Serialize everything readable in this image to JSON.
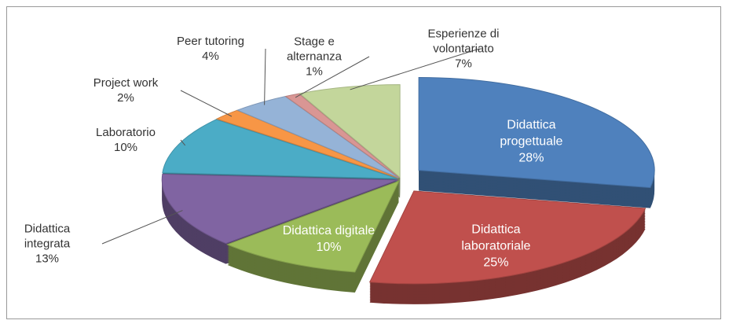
{
  "chart_data": {
    "type": "pie",
    "categories": [
      "Didattica progettuale",
      "Didattica laboratoriale",
      "Didattica digitale",
      "Didattica integrata",
      "Laboratorio",
      "Project work",
      "Peer tutoring",
      "Stage e alternanza",
      "Esperienze di volontariato"
    ],
    "values": [
      28,
      25,
      10,
      13,
      10,
      2,
      4,
      1,
      7
    ],
    "value_labels": [
      "28%",
      "25%",
      "10%",
      "13%",
      "10%",
      "2%",
      "4%",
      "1%",
      "7%"
    ],
    "colors": [
      "#4f81bd",
      "#c0504d",
      "#9bbb59",
      "#8064a2",
      "#4bacc6",
      "#f79646",
      "#95b3d7",
      "#d99694",
      "#c3d69b"
    ]
  }
}
